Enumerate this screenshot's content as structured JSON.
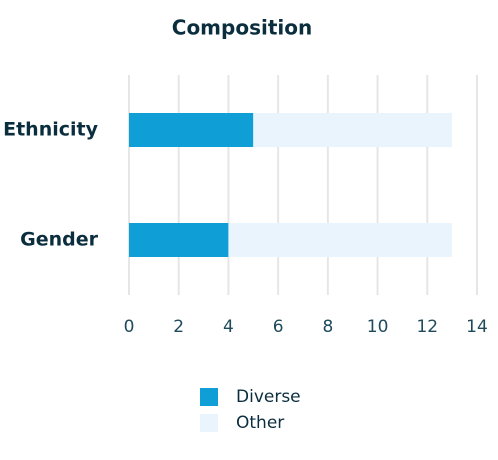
{
  "chart_data": {
    "type": "stacked-barh",
    "title": "Composition",
    "categories": [
      "Ethnicity",
      "Gender"
    ],
    "series": [
      {
        "name": "Diverse",
        "color": "#0f9fd6",
        "values": [
          5,
          4
        ]
      },
      {
        "name": "Other",
        "color": "#e9f4fd",
        "values": [
          8,
          9
        ]
      }
    ],
    "xlim": [
      0,
      14
    ],
    "xticks": [
      0,
      2,
      4,
      6,
      8,
      10,
      12,
      14
    ],
    "grid": true
  }
}
